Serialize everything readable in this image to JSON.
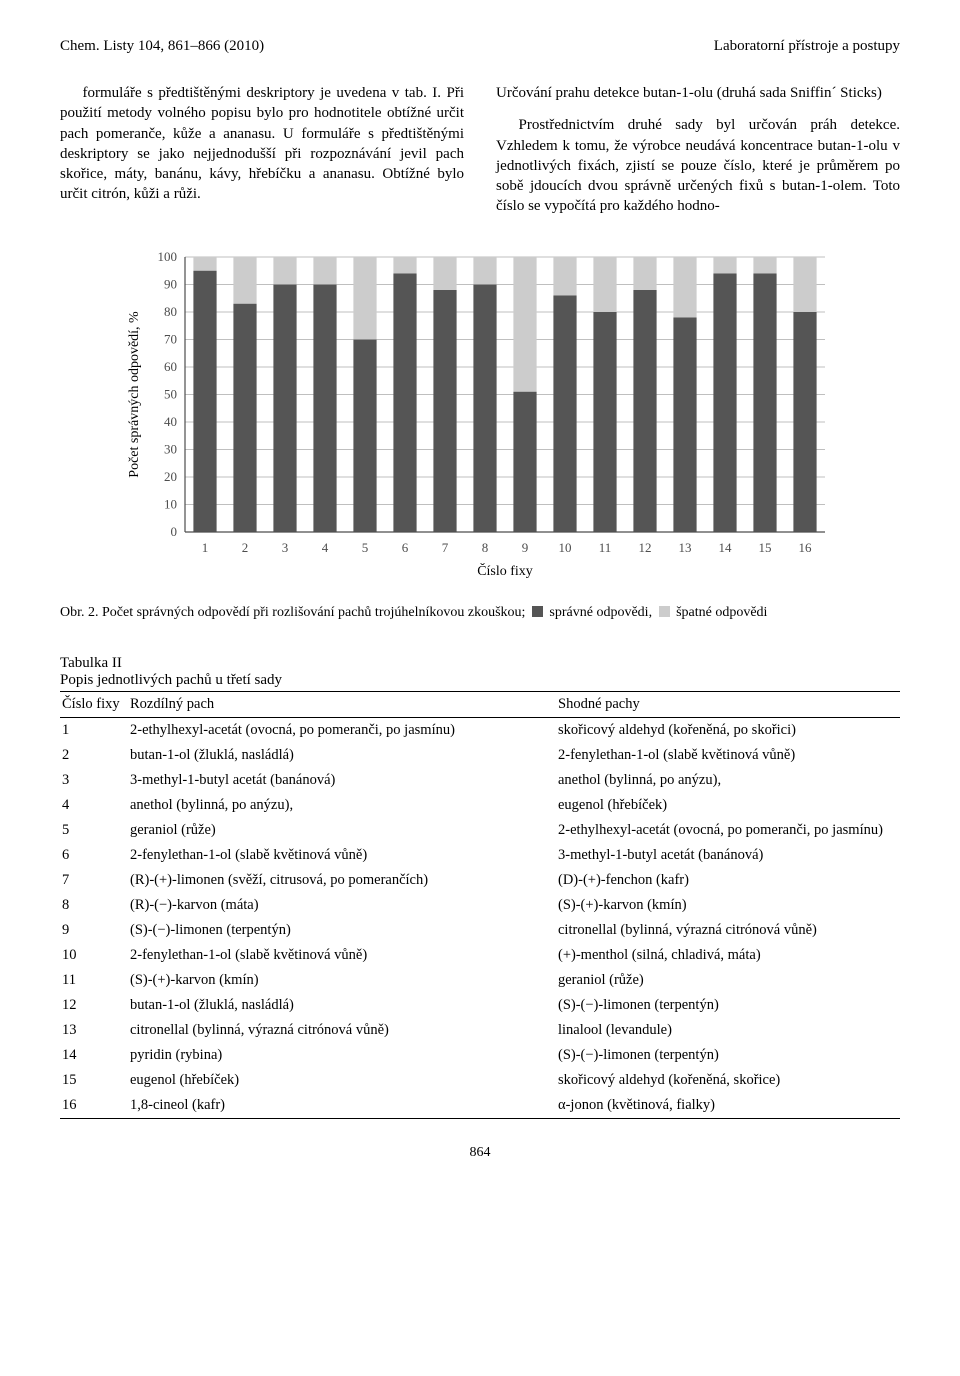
{
  "header": {
    "left": "Chem. Listy 104, 861–866 (2010)",
    "right": "Laboratorní přístroje a postupy"
  },
  "left_col": {
    "p1": "formuláře s předtištěnými deskriptory je uvedena v tab. I. Při použití metody volného popisu bylo pro hodnotitele obtížné určit pach pomeranče, kůže a ananasu. U formuláře s předtištěnými deskriptory se jako nejjednodušší při rozpoznávání jevil pach skořice, máty, banánu, kávy, hřebíčku a ananasu. Obtížné bylo určit citrón, kůži a růži."
  },
  "right_col": {
    "h": "Určování prahu detekce butan-1-olu (druhá sada Sniffin´ Sticks)",
    "p1": "Prostřednictvím druhé sady byl určován práh detekce. Vzhledem k tomu, že výrobce neudává koncentrace butan-1-olu v jednotlivých fixách, zjistí se pouze číslo, které je průměrem po sobě jdoucích dvou správně určených fixů s butan-1-olem. Toto číslo se vypočítá pro každého hodno-"
  },
  "chart": {
    "type": "stacked-bar",
    "categories": [
      "1",
      "2",
      "3",
      "4",
      "5",
      "6",
      "7",
      "8",
      "9",
      "10",
      "11",
      "12",
      "13",
      "14",
      "15",
      "16"
    ],
    "series_dark": [
      95,
      83,
      90,
      90,
      70,
      94,
      88,
      90,
      51,
      86,
      80,
      88,
      78,
      94,
      94,
      80
    ],
    "series_light_complement_to_100": true,
    "bar_color_dark": "#555555",
    "bar_color_light": "#cccccc",
    "grid_color": "#bfbfbf",
    "axis_color": "#4d4d4d",
    "background_color": "#ffffff",
    "ylim": [
      0,
      100
    ],
    "ytick_step": 10,
    "ylabel": "Počet správných odpovědí, %",
    "xlabel": "Číslo fixy",
    "label_fontsize": 14,
    "tick_fontsize": 13,
    "bar_width_ratio": 0.58
  },
  "caption": {
    "prefix": "Obr. 2. Počet správných odpovědí při rozlišování pachů trojúhelníkovou zkouškou;",
    "legend1": "správné odpovědi,",
    "legend2": "špatné odpovědi"
  },
  "table": {
    "title_line1": "Tabulka II",
    "title_line2": "Popis jednotlivých pachů u třetí sady",
    "columns": [
      "Číslo fixy",
      "Rozdílný pach",
      "Shodné pachy"
    ],
    "rows": [
      [
        "1",
        "2-ethylhexyl-acetát (ovocná, po pomeranči, po jasmínu)",
        "skořicový aldehyd (kořeněná, po skořici)"
      ],
      [
        "2",
        "butan-1-ol (žluklá, nasládlá)",
        "2-fenylethan-1-ol (slabě květinová vůně)"
      ],
      [
        "3",
        "3-methyl-1-butyl acetát (banánová)",
        "anethol (bylinná, po anýzu),"
      ],
      [
        "4",
        "anethol (bylinná, po anýzu),",
        "eugenol (hřebíček)"
      ],
      [
        "5",
        "geraniol (růže)",
        "2-ethylhexyl-acetát (ovocná, po pomeranči, po jasmínu)"
      ],
      [
        "6",
        "2-fenylethan-1-ol (slabě květinová vůně)",
        "3-methyl-1-butyl acetát (banánová)"
      ],
      [
        "7",
        "(R)-(+)-limonen (svěží, citrusová, po pomerančích)",
        "(D)-(+)-fenchon (kafr)"
      ],
      [
        "8",
        "(R)-(−)-karvon (máta)",
        "(S)-(+)-karvon (kmín)"
      ],
      [
        "9",
        "(S)-(−)-limonen (terpentýn)",
        "citronellal (bylinná, výrazná citrónová vůně)"
      ],
      [
        "10",
        "2-fenylethan-1-ol (slabě květinová vůně)",
        "(+)-menthol (silná, chladivá, máta)"
      ],
      [
        "11",
        "(S)-(+)-karvon (kmín)",
        "geraniol (růže)"
      ],
      [
        "12",
        "butan-1-ol (žluklá, nasládlá)",
        "(S)-(−)-limonen (terpentýn)"
      ],
      [
        "13",
        "citronellal (bylinná, výrazná citrónová vůně)",
        "linalool (levandule)"
      ],
      [
        "14",
        "pyridin (rybina)",
        "(S)-(−)-limonen (terpentýn)"
      ],
      [
        "15",
        "eugenol (hřebíček)",
        "skořicový aldehyd (kořeněná, skořice)"
      ],
      [
        "16",
        "1,8-cineol (kafr)",
        "α-jonon (květinová, fialky)"
      ]
    ]
  },
  "page_number": "864"
}
